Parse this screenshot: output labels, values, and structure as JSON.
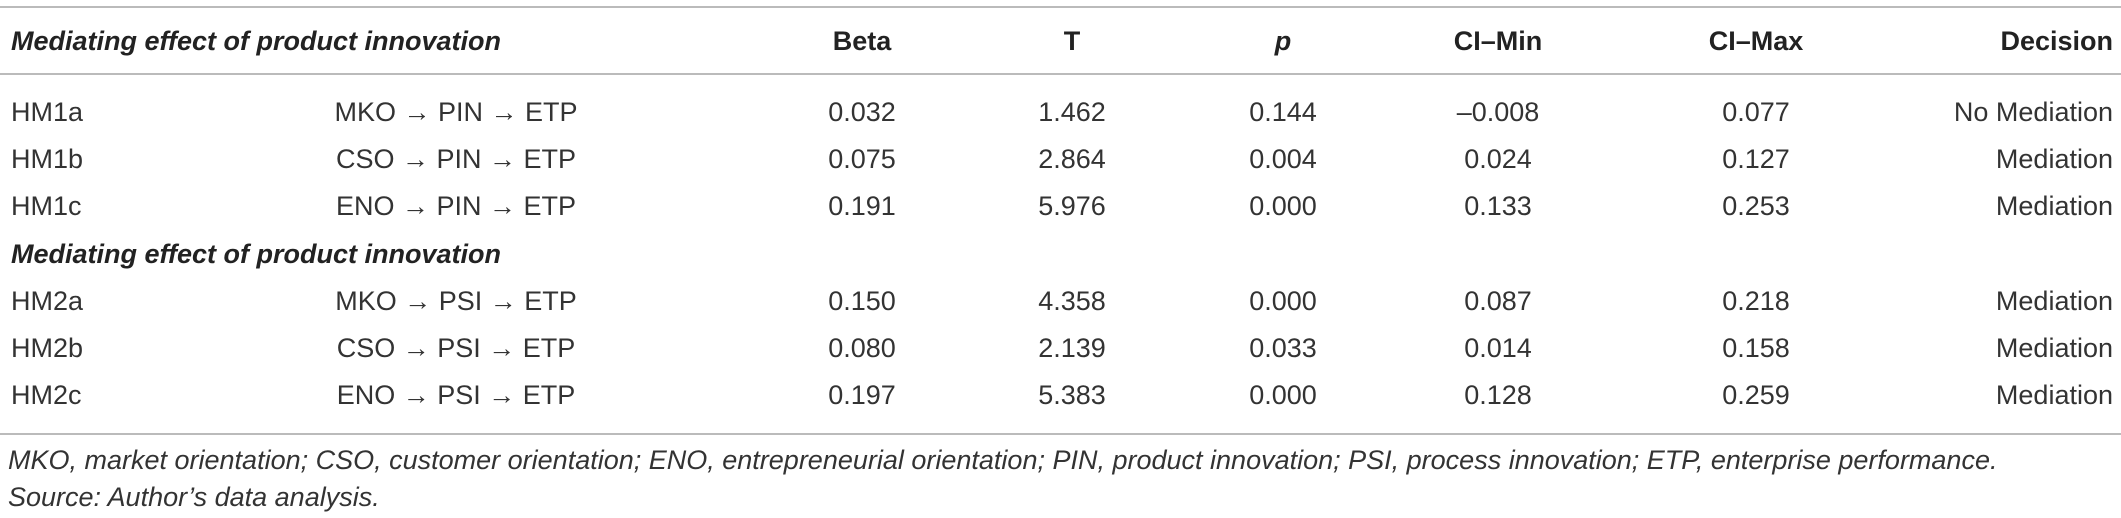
{
  "table": {
    "title": "Mediating effect of product innovation",
    "columns": [
      "Beta",
      "T",
      "p",
      "CI–Min",
      "CI–Max",
      "Decision"
    ],
    "sections": [
      {
        "title": null,
        "rows": [
          [
            "HM1a",
            "MKO → PIN → ETP",
            "0.032",
            "1.462",
            "0.144",
            "–0.008",
            "0.077",
            "No Mediation"
          ],
          [
            "HM1b",
            "CSO → PIN → ETP",
            "0.075",
            "2.864",
            "0.004",
            "0.024",
            "0.127",
            "Mediation"
          ],
          [
            "HM1c",
            "ENO → PIN → ETP",
            "0.191",
            "5.976",
            "0.000",
            "0.133",
            "0.253",
            "Mediation"
          ]
        ]
      },
      {
        "title": "Mediating effect of product innovation",
        "rows": [
          [
            "HM2a",
            "MKO → PSI → ETP",
            "0.150",
            "4.358",
            "0.000",
            "0.087",
            "0.218",
            "Mediation"
          ],
          [
            "HM2b",
            "CSO → PSI → ETP",
            "0.080",
            "2.139",
            "0.033",
            "0.014",
            "0.158",
            "Mediation"
          ],
          [
            "HM2c",
            "ENO → PSI → ETP",
            "0.197",
            "5.383",
            "0.000",
            "0.128",
            "0.259",
            "Mediation"
          ]
        ]
      }
    ],
    "footnote": [
      "MKO, market orientation; CSO, customer orientation; ENO, entrepreneurial orientation; PIN, product innovation; PSI, process innovation; ETP, enterprise performance.",
      "Source: Author’s data analysis."
    ]
  }
}
